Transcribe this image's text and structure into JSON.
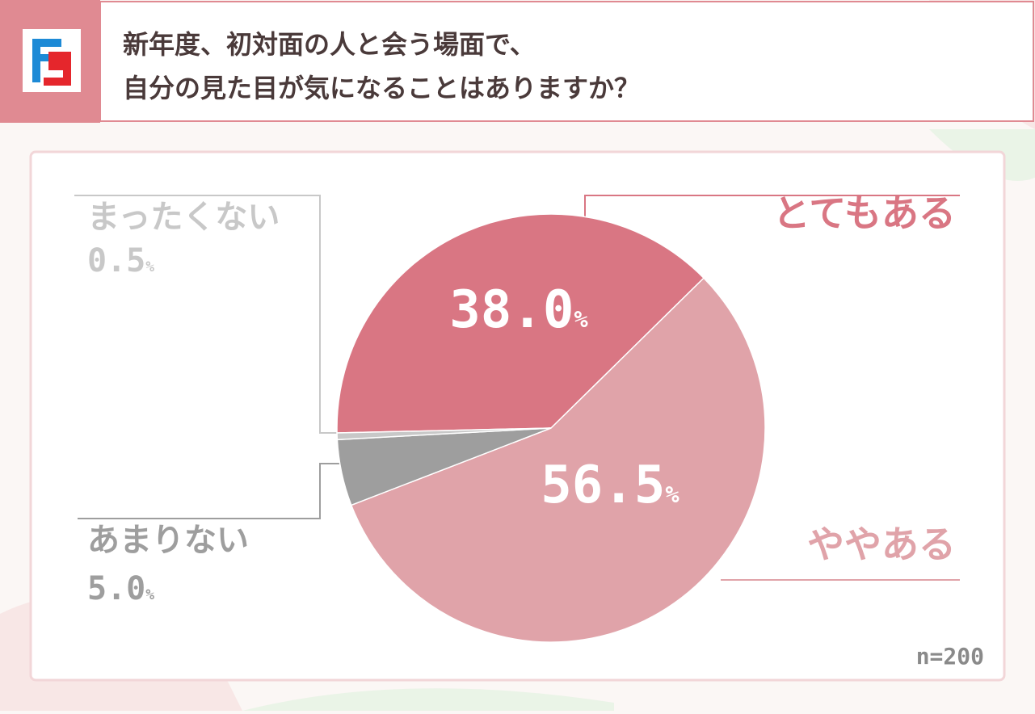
{
  "chart_data": {
    "type": "pie",
    "title_lines": [
      "新年度、初対面の人と会う場面で、",
      "自分の見た目が気になることはありますか？"
    ],
    "categories": [
      "とてもある",
      "ややある",
      "あまりない",
      "まったくない"
    ],
    "values": [
      38.0,
      56.5,
      5.0,
      0.5
    ],
    "value_labels": [
      "38.0",
      "56.5",
      "5.0",
      "0.5"
    ],
    "unit": "%",
    "colors": [
      "#d97683",
      "#e0a3a9",
      "#9e9e9e",
      "#c8c8c8"
    ],
    "note": "n=200"
  }
}
